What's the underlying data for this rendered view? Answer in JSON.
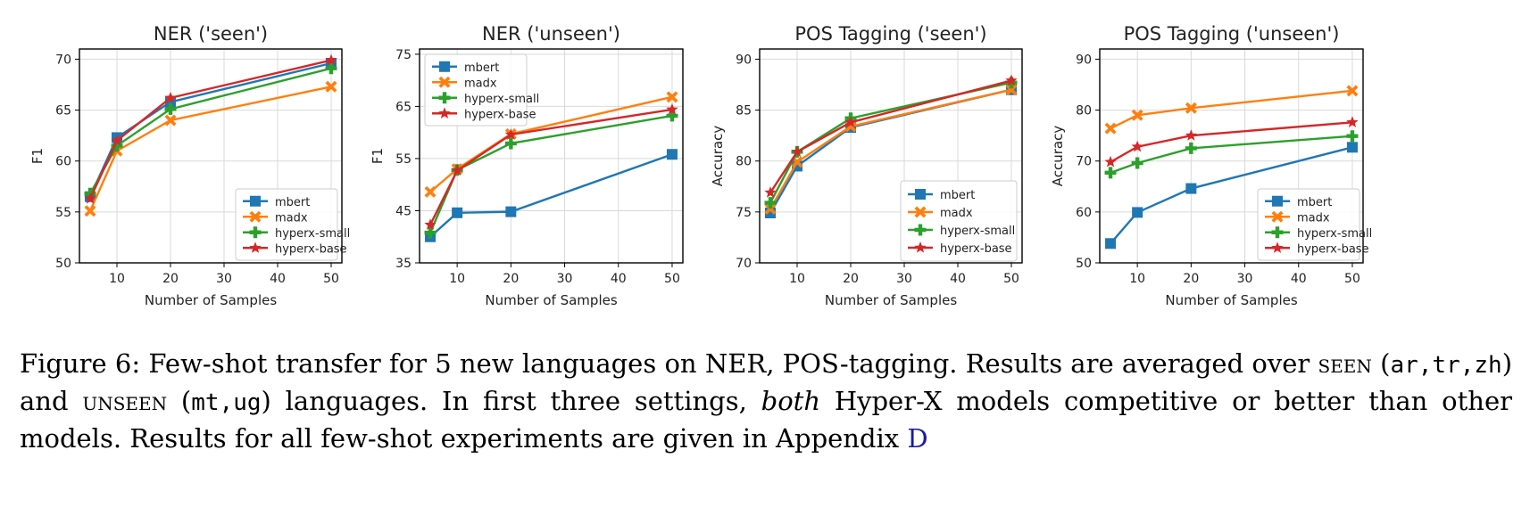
{
  "chart_data": [
    {
      "type": "line",
      "title": "NER ('seen')",
      "xlabel": "Number of Samples",
      "ylabel": "F1",
      "xlim": [
        3,
        52
      ],
      "ylim": [
        50,
        71
      ],
      "xticks": [
        10,
        20,
        30,
        40,
        50
      ],
      "yticks": [
        50,
        55,
        60,
        65,
        70
      ],
      "grid": true,
      "legend": "lower-right",
      "x": [
        5,
        10,
        20,
        50
      ],
      "series": [
        {
          "name": "mbert",
          "values": [
            56.5,
            62.3,
            65.8,
            69.6
          ]
        },
        {
          "name": "madx",
          "values": [
            55.1,
            61.0,
            64.0,
            67.3
          ]
        },
        {
          "name": "hyperx-small",
          "values": [
            56.8,
            61.5,
            65.1,
            69.1
          ]
        },
        {
          "name": "hyperx-base",
          "values": [
            56.3,
            62.0,
            66.2,
            69.9
          ]
        }
      ]
    },
    {
      "type": "line",
      "title": "NER ('unseen')",
      "xlabel": "Number of Samples",
      "ylabel": "F1",
      "xlim": [
        3,
        52
      ],
      "ylim": [
        35,
        76
      ],
      "xticks": [
        10,
        20,
        30,
        40,
        50
      ],
      "yticks": [
        35,
        45,
        55,
        65,
        75
      ],
      "grid": true,
      "legend": "upper-left",
      "x": [
        5,
        10,
        20,
        50
      ],
      "series": [
        {
          "name": "mbert",
          "values": [
            40.0,
            44.6,
            44.8,
            55.8
          ]
        },
        {
          "name": "madx",
          "values": [
            48.6,
            53.0,
            59.7,
            66.8
          ]
        },
        {
          "name": "hyperx-small",
          "values": [
            40.8,
            52.8,
            57.9,
            63.2
          ]
        },
        {
          "name": "hyperx-base",
          "values": [
            42.3,
            52.7,
            59.6,
            64.4
          ]
        }
      ]
    },
    {
      "type": "line",
      "title": "POS Tagging ('seen')",
      "xlabel": "Number of Samples",
      "ylabel": "Accuracy",
      "xlim": [
        3,
        52
      ],
      "ylim": [
        70,
        91
      ],
      "xticks": [
        10,
        20,
        30,
        40,
        50
      ],
      "yticks": [
        70,
        75,
        80,
        85,
        90
      ],
      "grid": true,
      "legend": "lower-right",
      "x": [
        5,
        10,
        20,
        50
      ],
      "series": [
        {
          "name": "mbert",
          "values": [
            74.9,
            79.5,
            83.3,
            87.0
          ]
        },
        {
          "name": "madx",
          "values": [
            75.3,
            79.9,
            83.4,
            87.0
          ]
        },
        {
          "name": "hyperx-small",
          "values": [
            75.9,
            80.9,
            84.2,
            87.7
          ]
        },
        {
          "name": "hyperx-base",
          "values": [
            76.9,
            80.9,
            83.8,
            87.9
          ]
        }
      ]
    },
    {
      "type": "line",
      "title": "POS Tagging ('unseen')",
      "xlabel": "Number of Samples",
      "ylabel": "Accuracy",
      "xlim": [
        3,
        52
      ],
      "ylim": [
        50,
        92
      ],
      "xticks": [
        10,
        20,
        30,
        40,
        50
      ],
      "yticks": [
        50,
        60,
        70,
        80,
        90
      ],
      "grid": true,
      "legend": "lower-right",
      "x": [
        5,
        10,
        20,
        50
      ],
      "series": [
        {
          "name": "mbert",
          "values": [
            53.8,
            59.9,
            64.6,
            72.7
          ]
        },
        {
          "name": "madx",
          "values": [
            76.4,
            79.0,
            80.4,
            83.8
          ]
        },
        {
          "name": "hyperx-small",
          "values": [
            67.7,
            69.6,
            72.5,
            74.9
          ]
        },
        {
          "name": "hyperx-base",
          "values": [
            69.8,
            72.8,
            75.0,
            77.6
          ]
        }
      ]
    }
  ],
  "series_colors": {
    "mbert": "#1f77b4",
    "madx": "#ff7f0e",
    "hyperx-small": "#2ca02c",
    "hyperx-base": "#d62728"
  },
  "series_markers": {
    "mbert": "square",
    "madx": "x-cross",
    "hyperx-small": "plus",
    "hyperx-base": "star"
  },
  "caption": {
    "label": "Figure 6:",
    "part1": "Few-shot transfer for 5 new languages on NER, POS-tagging. Results are averaged over",
    "seen": "seen",
    "seen_langs": "ar,tr,zh",
    "and": "and",
    "unseen": "unseen",
    "unseen_langs": "mt,ug",
    "part2": "languages. In first three settings,",
    "emph": "both",
    "part3": "Hyper-X models competitive or better than other models. Results for all few-shot experiments are given in Appendix",
    "appendix_ref": "D"
  }
}
